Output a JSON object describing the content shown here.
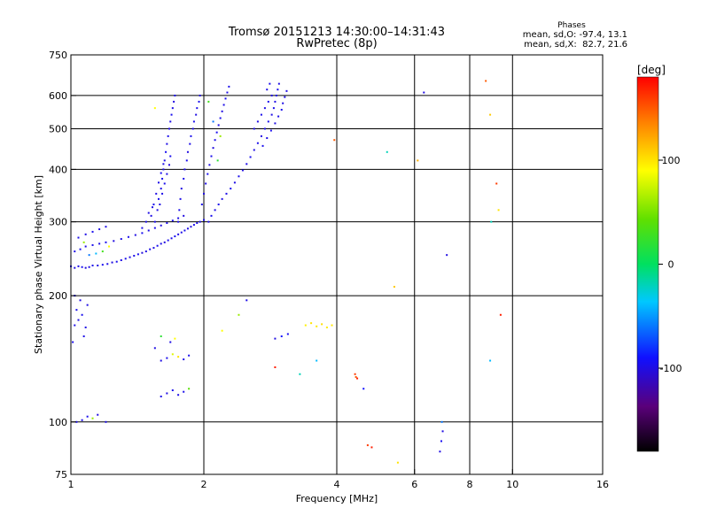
{
  "title_line1": "Tromsø 20151213 14:30:00–14:31:43",
  "title_line2": "RwPretec (8p)",
  "stats": {
    "header": "Phases",
    "line_o": "mean, sd,O: -97.4, 13.1",
    "line_x": "mean, sd,X:  82.7, 21.6"
  },
  "colorbar": {
    "label": "[deg]",
    "ticks": [
      {
        "value": 100,
        "label": "100"
      },
      {
        "value": 0,
        "label": "0"
      },
      {
        "value": -100,
        "label": "-100"
      }
    ],
    "range": [
      -180,
      180
    ]
  },
  "chart_data": {
    "type": "scatter",
    "xlabel": "Frequency [MHz]",
    "ylabel": "Stationary phase Virtual Height [km]",
    "xscale": "log",
    "yscale": "log",
    "xlim": [
      1,
      16
    ],
    "ylim": [
      75,
      750
    ],
    "xticks": [
      {
        "value": 1,
        "label": "1"
      },
      {
        "value": 2,
        "label": "2"
      },
      {
        "value": 4,
        "label": "4"
      },
      {
        "value": 6,
        "label": "6"
      },
      {
        "value": 8,
        "label": "8"
      },
      {
        "value": 10,
        "label": "10"
      },
      {
        "value": 16,
        "label": "16"
      }
    ],
    "yticks": [
      {
        "value": 75,
        "label": "75"
      },
      {
        "value": 100,
        "label": "100"
      },
      {
        "value": 200,
        "label": "200"
      },
      {
        "value": 300,
        "label": "300"
      },
      {
        "value": 400,
        "label": "400"
      },
      {
        "value": 500,
        "label": "500"
      },
      {
        "value": 600,
        "label": "600"
      },
      {
        "value": 750,
        "label": "750"
      }
    ],
    "grid_x": [
      2,
      4,
      6,
      8,
      10
    ],
    "grid_y": [
      100,
      200,
      300,
      400,
      500,
      600
    ],
    "color_scale": "phase (deg), -180 to 180",
    "points": [
      [
        1.0,
        235,
        -95
      ],
      [
        1.02,
        233,
        -100
      ],
      [
        1.04,
        235,
        -98
      ],
      [
        1.06,
        234,
        -96
      ],
      [
        1.08,
        233,
        -102
      ],
      [
        1.1,
        234,
        -99
      ],
      [
        1.12,
        236,
        -97
      ],
      [
        1.15,
        236,
        -100
      ],
      [
        1.18,
        237,
        -95
      ],
      [
        1.21,
        238,
        -98
      ],
      [
        1.24,
        240,
        -101
      ],
      [
        1.27,
        241,
        -96
      ],
      [
        1.3,
        243,
        -99
      ],
      [
        1.33,
        245,
        -97
      ],
      [
        1.36,
        247,
        -100
      ],
      [
        1.39,
        249,
        -98
      ],
      [
        1.42,
        251,
        -95
      ],
      [
        1.45,
        253,
        -102
      ],
      [
        1.48,
        255,
        -99
      ],
      [
        1.51,
        258,
        -97
      ],
      [
        1.54,
        260,
        -100
      ],
      [
        1.57,
        263,
        -96
      ],
      [
        1.6,
        266,
        -98
      ],
      [
        1.63,
        268,
        -101
      ],
      [
        1.66,
        271,
        -97
      ],
      [
        1.69,
        274,
        -99
      ],
      [
        1.72,
        277,
        -95
      ],
      [
        1.75,
        280,
        -100
      ],
      [
        1.78,
        283,
        -98
      ],
      [
        1.81,
        286,
        -96
      ],
      [
        1.84,
        289,
        -99
      ],
      [
        1.87,
        292,
        -101
      ],
      [
        1.9,
        295,
        -97
      ],
      [
        1.93,
        298,
        -98
      ],
      [
        1.96,
        300,
        -100
      ],
      [
        2.0,
        303,
        -96
      ],
      [
        1.02,
        255,
        -98
      ],
      [
        1.05,
        258,
        -95
      ],
      [
        1.08,
        262,
        -100
      ],
      [
        1.12,
        264,
        -97
      ],
      [
        1.16,
        266,
        -99
      ],
      [
        1.2,
        268,
        -96
      ],
      [
        1.25,
        270,
        -101
      ],
      [
        1.3,
        273,
        -98
      ],
      [
        1.35,
        276,
        -97
      ],
      [
        1.4,
        279,
        -100
      ],
      [
        1.45,
        282,
        -95
      ],
      [
        1.5,
        286,
        -99
      ],
      [
        1.55,
        290,
        -97
      ],
      [
        1.6,
        294,
        -100
      ],
      [
        1.65,
        298,
        -98
      ],
      [
        1.7,
        302,
        -96
      ],
      [
        1.75,
        306,
        -99
      ],
      [
        1.8,
        310,
        -101
      ],
      [
        1.04,
        275,
        -97
      ],
      [
        1.08,
        280,
        -99
      ],
      [
        1.12,
        284,
        -96
      ],
      [
        1.16,
        288,
        -100
      ],
      [
        1.2,
        292,
        -98
      ],
      [
        1.1,
        250,
        -60
      ],
      [
        1.14,
        252,
        -40
      ],
      [
        1.18,
        255,
        30
      ],
      [
        1.22,
        262,
        90
      ],
      [
        1.07,
        268,
        60
      ],
      [
        1.55,
        300,
        -98
      ],
      [
        1.57,
        320,
        -100
      ],
      [
        1.58,
        340,
        -96
      ],
      [
        1.6,
        360,
        -99
      ],
      [
        1.61,
        380,
        -97
      ],
      [
        1.62,
        400,
        -101
      ],
      [
        1.63,
        420,
        -98
      ],
      [
        1.64,
        440,
        -95
      ],
      [
        1.65,
        460,
        -99
      ],
      [
        1.66,
        480,
        -97
      ],
      [
        1.67,
        500,
        -100
      ],
      [
        1.68,
        520,
        -98
      ],
      [
        1.69,
        540,
        -96
      ],
      [
        1.7,
        560,
        -99
      ],
      [
        1.71,
        580,
        -101
      ],
      [
        1.72,
        600,
        -97
      ],
      [
        1.52,
        310,
        -99
      ],
      [
        1.54,
        330,
        -97
      ],
      [
        1.56,
        350,
        -100
      ],
      [
        1.58,
        372,
        -98
      ],
      [
        1.6,
        392,
        -96
      ],
      [
        1.62,
        412,
        -99
      ],
      [
        1.59,
        330,
        -100
      ],
      [
        1.61,
        350,
        -98
      ],
      [
        1.63,
        370,
        -97
      ],
      [
        1.65,
        390,
        -99
      ],
      [
        1.67,
        410,
        -101
      ],
      [
        1.68,
        430,
        -96
      ],
      [
        1.45,
        290,
        -98
      ],
      [
        1.48,
        300,
        -97
      ],
      [
        1.5,
        315,
        -99
      ],
      [
        1.53,
        325,
        -100
      ],
      [
        1.75,
        300,
        -99
      ],
      [
        1.76,
        320,
        -97
      ],
      [
        1.77,
        340,
        -98
      ],
      [
        1.78,
        360,
        -100
      ],
      [
        1.8,
        380,
        -96
      ],
      [
        1.81,
        400,
        -99
      ],
      [
        1.83,
        420,
        -97
      ],
      [
        1.84,
        440,
        -101
      ],
      [
        1.86,
        460,
        -98
      ],
      [
        1.87,
        480,
        -96
      ],
      [
        1.89,
        500,
        -99
      ],
      [
        1.9,
        520,
        -97
      ],
      [
        1.92,
        540,
        -100
      ],
      [
        1.93,
        560,
        -98
      ],
      [
        1.95,
        580,
        -96
      ],
      [
        1.96,
        600,
        -99
      ],
      [
        1.98,
        330,
        -97
      ],
      [
        2.0,
        350,
        -100
      ],
      [
        2.02,
        370,
        -98
      ],
      [
        2.04,
        390,
        -96
      ],
      [
        2.06,
        410,
        -99
      ],
      [
        2.08,
        430,
        -97
      ],
      [
        2.1,
        450,
        -101
      ],
      [
        2.12,
        470,
        -98
      ],
      [
        2.14,
        490,
        -96
      ],
      [
        2.16,
        510,
        -99
      ],
      [
        2.18,
        530,
        -97
      ],
      [
        2.2,
        550,
        -100
      ],
      [
        2.22,
        570,
        -98
      ],
      [
        2.24,
        590,
        -96
      ],
      [
        2.26,
        610,
        -99
      ],
      [
        2.28,
        630,
        -97
      ],
      [
        2.05,
        300,
        -98
      ],
      [
        2.08,
        310,
        -96
      ],
      [
        2.12,
        320,
        -99
      ],
      [
        2.16,
        330,
        -97
      ],
      [
        2.2,
        340,
        -100
      ],
      [
        2.25,
        350,
        -98
      ],
      [
        2.3,
        360,
        -96
      ],
      [
        2.35,
        372,
        -99
      ],
      [
        2.4,
        385,
        -97
      ],
      [
        2.45,
        398,
        -100
      ],
      [
        2.5,
        412,
        -98
      ],
      [
        2.55,
        428,
        -96
      ],
      [
        2.6,
        445,
        -99
      ],
      [
        2.65,
        462,
        -97
      ],
      [
        2.7,
        480,
        -100
      ],
      [
        2.75,
        500,
        -98
      ],
      [
        2.8,
        520,
        -96
      ],
      [
        2.85,
        540,
        -99
      ],
      [
        2.88,
        560,
        -97
      ],
      [
        2.9,
        580,
        -100
      ],
      [
        2.92,
        600,
        -98
      ],
      [
        2.94,
        620,
        -96
      ],
      [
        2.96,
        640,
        -99
      ],
      [
        2.7,
        540,
        -97
      ],
      [
        2.75,
        560,
        -99
      ],
      [
        2.8,
        580,
        -96
      ],
      [
        2.85,
        600,
        -100
      ],
      [
        2.78,
        620,
        -98
      ],
      [
        2.82,
        640,
        -97
      ],
      [
        2.6,
        500,
        -98
      ],
      [
        2.65,
        520,
        -100
      ],
      [
        2.72,
        455,
        -96
      ],
      [
        2.78,
        475,
        -99
      ],
      [
        2.84,
        495,
        -97
      ],
      [
        2.9,
        515,
        -100
      ],
      [
        2.95,
        535,
        -98
      ],
      [
        3.0,
        555,
        -96
      ],
      [
        3.02,
        575,
        -99
      ],
      [
        3.05,
        595,
        -97
      ],
      [
        3.08,
        615,
        -100
      ],
      [
        2.15,
        420,
        20
      ],
      [
        2.18,
        480,
        60
      ],
      [
        2.1,
        520,
        -60
      ],
      [
        2.05,
        580,
        30
      ],
      [
        1.55,
        560,
        90
      ],
      [
        1.02,
        170,
        -98
      ],
      [
        1.04,
        175,
        -100
      ],
      [
        1.06,
        180,
        -96
      ],
      [
        1.08,
        168,
        -99
      ],
      [
        1.03,
        185,
        -97
      ],
      [
        1.05,
        195,
        -101
      ],
      [
        1.07,
        160,
        -98
      ],
      [
        1.01,
        155,
        -96
      ],
      [
        1.09,
        190,
        -99
      ],
      [
        1.02,
        200,
        -97
      ],
      [
        1.6,
        140,
        -99
      ],
      [
        1.65,
        142,
        -97
      ],
      [
        1.7,
        145,
        80
      ],
      [
        1.75,
        143,
        100
      ],
      [
        1.8,
        141,
        -98
      ],
      [
        1.85,
        144,
        -96
      ],
      [
        1.55,
        150,
        -100
      ],
      [
        1.6,
        160,
        20
      ],
      [
        1.68,
        155,
        -99
      ],
      [
        1.72,
        158,
        90
      ],
      [
        1.6,
        115,
        -98
      ],
      [
        1.65,
        117,
        -100
      ],
      [
        1.7,
        119,
        -96
      ],
      [
        1.75,
        116,
        -99
      ],
      [
        1.8,
        118,
        -97
      ],
      [
        1.85,
        120,
        40
      ],
      [
        1.03,
        100,
        -97
      ],
      [
        1.06,
        101,
        -99
      ],
      [
        1.09,
        103,
        -96
      ],
      [
        1.12,
        102,
        60
      ],
      [
        1.15,
        104,
        -100
      ],
      [
        1.2,
        100,
        -98
      ],
      [
        3.4,
        170,
        95
      ],
      [
        3.5,
        172,
        100
      ],
      [
        3.6,
        169,
        98
      ],
      [
        3.7,
        171,
        102
      ],
      [
        3.8,
        168,
        97
      ],
      [
        3.9,
        170,
        99
      ],
      [
        3.0,
        160,
        -90
      ],
      [
        3.1,
        162,
        -95
      ],
      [
        2.9,
        158,
        -100
      ],
      [
        4.4,
        130,
        160
      ],
      [
        4.42,
        128,
        150
      ],
      [
        4.45,
        127,
        170
      ],
      [
        4.6,
        120,
        -90
      ],
      [
        6.95,
        95,
        -100
      ],
      [
        6.9,
        90,
        -95
      ],
      [
        6.92,
        100,
        -60
      ],
      [
        6.85,
        85,
        -100
      ],
      [
        8.7,
        650,
        150
      ],
      [
        8.9,
        540,
        110
      ],
      [
        9.2,
        370,
        160
      ],
      [
        9.3,
        320,
        100
      ],
      [
        9.4,
        180,
        170
      ],
      [
        8.95,
        300,
        -20
      ],
      [
        8.9,
        140,
        -40
      ],
      [
        5.4,
        210,
        110
      ],
      [
        5.5,
        80,
        100
      ],
      [
        4.8,
        87,
        170
      ],
      [
        4.7,
        88,
        160
      ],
      [
        6.3,
        610,
        -100
      ],
      [
        5.2,
        440,
        -20
      ],
      [
        6.1,
        420,
        120
      ],
      [
        7.1,
        250,
        -100
      ],
      [
        3.95,
        470,
        150
      ],
      [
        2.5,
        195,
        -98
      ],
      [
        2.4,
        180,
        60
      ],
      [
        3.3,
        130,
        -20
      ],
      [
        3.6,
        140,
        -40
      ],
      [
        2.9,
        135,
        170
      ],
      [
        2.2,
        165,
        90
      ]
    ]
  }
}
